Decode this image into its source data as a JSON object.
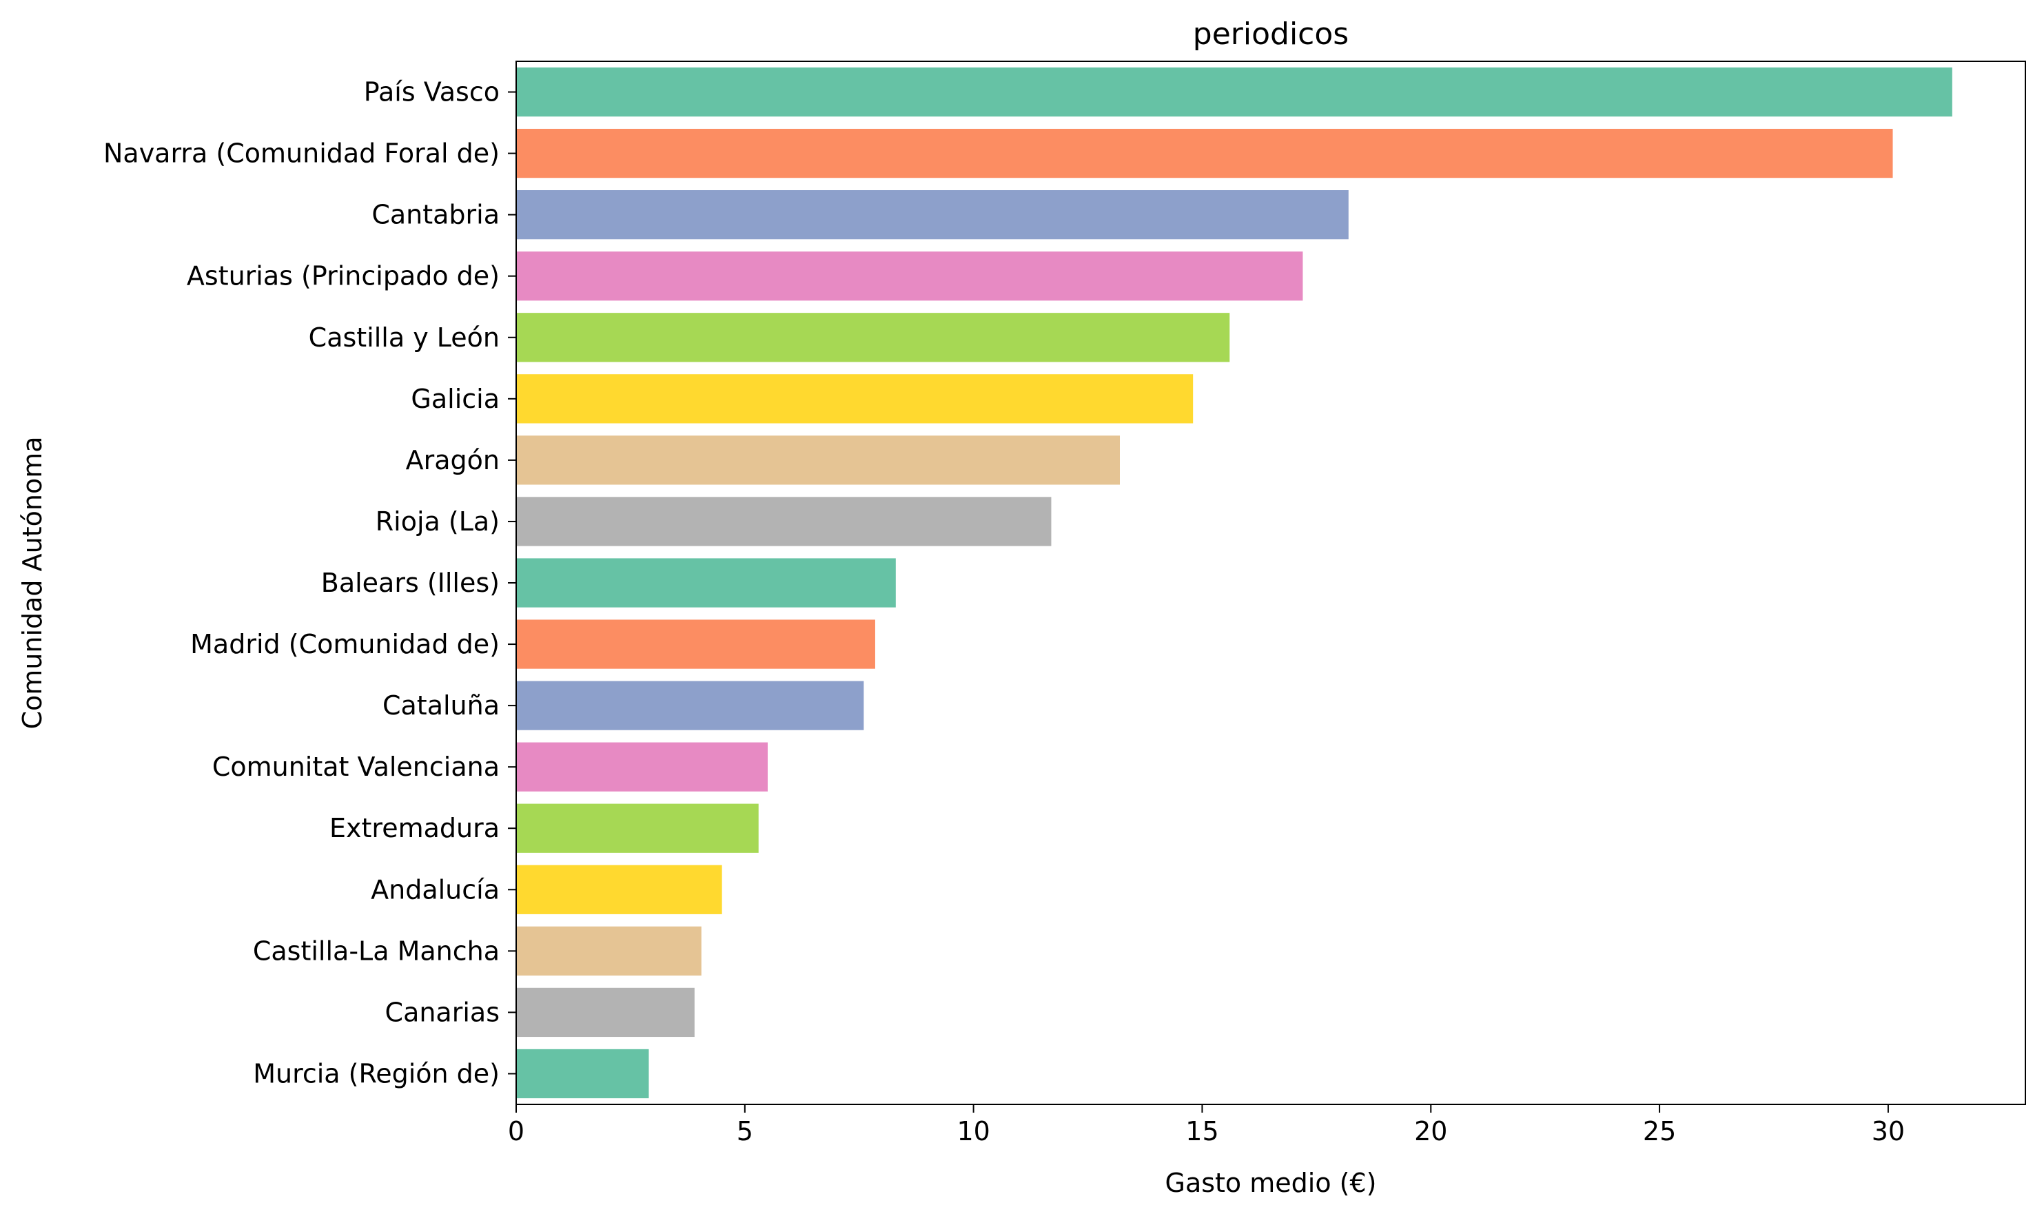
{
  "chart_data": {
    "type": "bar",
    "orientation": "horizontal",
    "title": "periodicos",
    "xlabel": "Gasto medio (€)",
    "ylabel": "Comunidad Autónoma",
    "xlim": [
      0,
      33
    ],
    "xticks": [
      0,
      5,
      10,
      15,
      20,
      25,
      30
    ],
    "grid": false,
    "categories": [
      "País Vasco",
      "Navarra (Comunidad Foral de)",
      "Cantabria",
      "Asturias (Principado de)",
      "Castilla y León",
      "Galicia",
      "Aragón",
      "Rioja (La)",
      "Balears (Illes)",
      "Madrid (Comunidad de)",
      "Cataluña",
      "Comunitat Valenciana",
      "Extremadura",
      "Andalucía",
      "Castilla-La Mancha",
      "Canarias",
      "Murcia (Región de)"
    ],
    "values": [
      31.4,
      30.1,
      18.2,
      17.2,
      15.6,
      14.8,
      13.2,
      11.7,
      8.3,
      7.85,
      7.6,
      5.5,
      5.3,
      4.5,
      4.05,
      3.9,
      2.9
    ],
    "colors": [
      "#66c2a5",
      "#fc8d62",
      "#8da0cb",
      "#e78ac3",
      "#a6d854",
      "#ffd92f",
      "#e5c494",
      "#b3b3b3",
      "#66c2a5",
      "#fc8d62",
      "#8da0cb",
      "#e78ac3",
      "#a6d854",
      "#ffd92f",
      "#e5c494",
      "#b3b3b3",
      "#66c2a5"
    ]
  }
}
